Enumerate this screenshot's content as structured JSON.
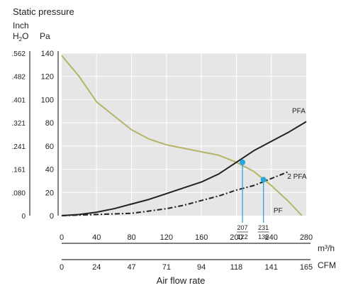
{
  "chart_data": {
    "type": "line",
    "title": "Static pressure",
    "y_unit_labels": {
      "inch": "Inch",
      "h2o_h": "H",
      "h2o_sub": "2",
      "h2o_o": "O",
      "pa": "Pa"
    },
    "y_ticks_pa": [
      "0",
      "20",
      "40",
      "60",
      "80",
      "100",
      "120",
      "140"
    ],
    "y_ticks_inch": [
      "0",
      ".080",
      ".161",
      ".241",
      ".321",
      ".401",
      ".482",
      ".562"
    ],
    "ylim": [
      0,
      140
    ],
    "xlim": [
      0,
      280
    ],
    "x_ticks_m3h": [
      "0",
      "40",
      "80",
      "120",
      "160",
      "200",
      "240",
      "280"
    ],
    "x_ticks_cfm": [
      "0",
      "24",
      "47",
      "71",
      "94",
      "118",
      "141",
      "165"
    ],
    "x_unit_m3h": "m³/h",
    "x_unit_cfm": "CFM",
    "xlabel": "Air flow rate",
    "grid": true,
    "colors": {
      "pf": "#b5b56a",
      "pfa": "#222222",
      "marker": "#2aa7d8",
      "plot_bg": "#e6e6e6"
    },
    "series": [
      {
        "name": "PF",
        "style": "solid",
        "color": "#b5b56a",
        "x": [
          0,
          20,
          40,
          60,
          80,
          100,
          120,
          140,
          160,
          180,
          200,
          220,
          240,
          260,
          275
        ],
        "y": [
          138,
          120,
          98,
          86,
          74,
          66,
          61,
          58,
          55,
          52,
          46,
          38,
          26,
          12,
          0
        ]
      },
      {
        "name": "PFA",
        "style": "solid",
        "color": "#222222",
        "x": [
          0,
          20,
          40,
          60,
          80,
          100,
          120,
          140,
          160,
          180,
          200,
          220,
          240,
          260,
          280
        ],
        "y": [
          0,
          1,
          3,
          6,
          10,
          14,
          19,
          24,
          29,
          36,
          46,
          56,
          64,
          72,
          81
        ]
      },
      {
        "name": "2 PFA",
        "style": "dashdot",
        "color": "#222222",
        "x": [
          0,
          40,
          60,
          80,
          100,
          120,
          140,
          160,
          180,
          200,
          220,
          240,
          260
        ],
        "y": [
          0,
          1,
          1.5,
          2,
          4,
          6,
          9,
          13,
          17,
          22,
          26,
          32,
          38
        ]
      }
    ],
    "operating_points": [
      {
        "x": 207,
        "y": 46,
        "label_top": "207",
        "label_bottom": "122"
      },
      {
        "x": 231,
        "y": 31,
        "label_top": "231",
        "label_bottom": "136"
      }
    ]
  }
}
